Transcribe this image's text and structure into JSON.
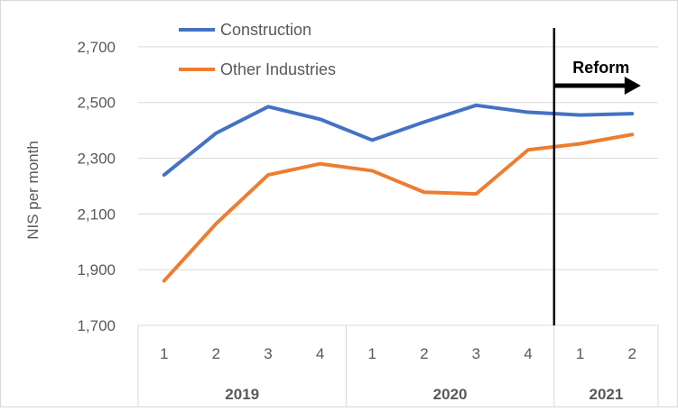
{
  "chart_data": {
    "type": "line",
    "ylabel": "NIS per month",
    "ylim": [
      1700,
      2800
    ],
    "yticks": [
      1700,
      1900,
      2100,
      2300,
      2500,
      2700
    ],
    "ytick_labels": [
      "1,700",
      "1,900",
      "2,100",
      "2,300",
      "2,500",
      "2,700"
    ],
    "grid": true,
    "legend_position": "top-left",
    "categories": [
      "1",
      "2",
      "3",
      "4",
      "1",
      "2",
      "3",
      "4",
      "1",
      "2"
    ],
    "groups": [
      {
        "label": "2019",
        "count": 4
      },
      {
        "label": "2020",
        "count": 4
      },
      {
        "label": "2021",
        "count": 2
      }
    ],
    "series": [
      {
        "name": "Construction",
        "color": "#4472C4",
        "values": [
          2240,
          2390,
          2485,
          2440,
          2365,
          2430,
          2490,
          2465,
          2455,
          2460
        ]
      },
      {
        "name": "Other Industries",
        "color": "#ED7D31",
        "values": [
          1860,
          2065,
          2240,
          2280,
          2255,
          2178,
          2172,
          2330,
          2352,
          2385
        ]
      }
    ],
    "annotation": {
      "label": "Reform",
      "position_between_categories": 7.5
    }
  }
}
